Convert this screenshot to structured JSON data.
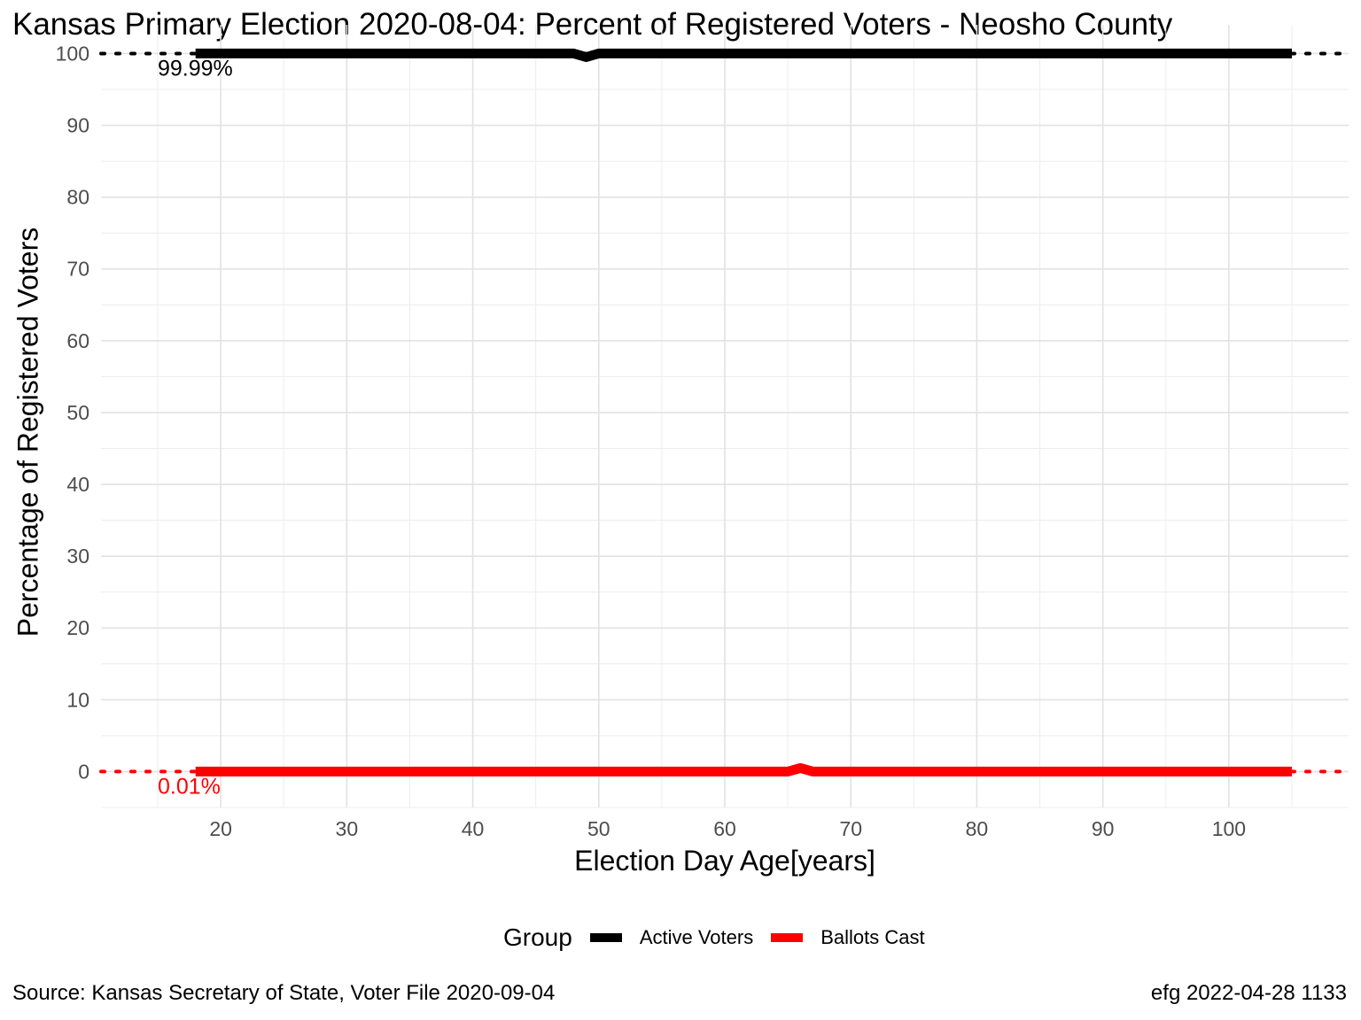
{
  "title": "Kansas Primary Election 2020-08-04:  Percent of Registered Voters - Neosho County",
  "caption_left": "Source:  Kansas Secretary of State, Voter File  2020-09-04",
  "caption_right": "efg 2022-04-28 1133",
  "legend": {
    "title": "Group",
    "items": [
      {
        "label": "Active Voters",
        "color": "#000000"
      },
      {
        "label": "Ballots Cast",
        "color": "#ff0000"
      }
    ]
  },
  "chart_data": {
    "type": "line",
    "xlabel": "Election Day Age[years]",
    "ylabel": "Percentage of Registered Voters",
    "xlim": [
      10.5,
      109.5
    ],
    "ylim": [
      -5,
      104
    ],
    "x_ticks": [
      20,
      30,
      40,
      50,
      60,
      70,
      80,
      90,
      100
    ],
    "y_ticks": [
      0,
      10,
      20,
      30,
      40,
      50,
      60,
      70,
      80,
      90,
      100
    ],
    "grid": true,
    "legend_position": "bottom",
    "series": [
      {
        "name": "Active Voters",
        "color": "#000000",
        "x": [
          18,
          48,
          49,
          50,
          105
        ],
        "y": [
          100,
          100,
          99.5,
          100,
          100
        ]
      },
      {
        "name": "Ballots Cast",
        "color": "#ff0000",
        "x": [
          18,
          65,
          66,
          67,
          105
        ],
        "y": [
          0,
          0,
          0.5,
          0,
          0
        ]
      }
    ],
    "reference_lines": [
      {
        "y": 99.99,
        "color": "#000000",
        "style": "dotted",
        "label": "99.99%"
      },
      {
        "y": 0.01,
        "color": "#ff0000",
        "style": "dotted",
        "label": "0.01%"
      }
    ]
  }
}
